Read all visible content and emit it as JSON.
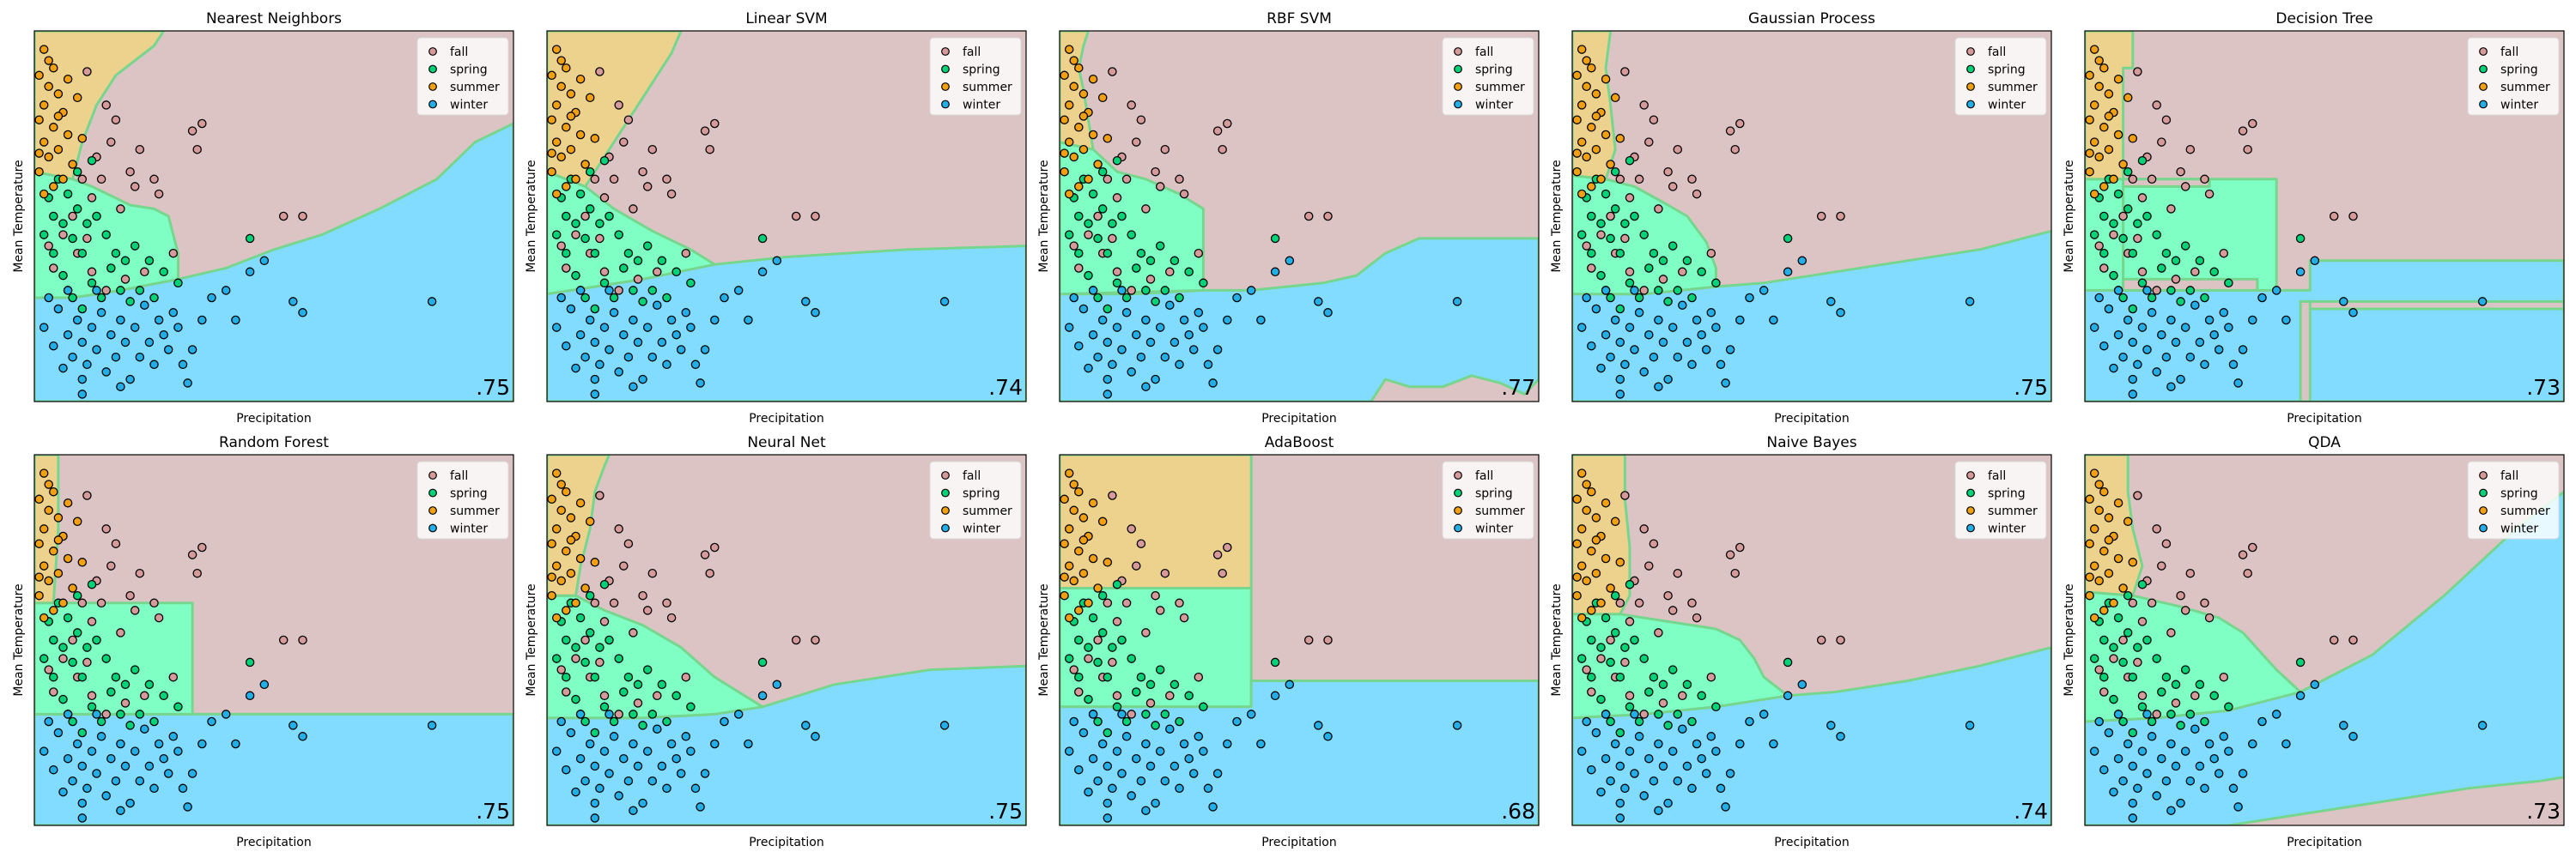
{
  "figure": {
    "xlabel": "Precipitation",
    "ylabel": "Mean Temperature",
    "legend_position": "top-right",
    "classes": [
      {
        "name": "fall",
        "region_color": "#dcc4c4",
        "point_color": "#d79a9a"
      },
      {
        "name": "spring",
        "region_color": "#80ffc4",
        "point_color": "#00d278"
      },
      {
        "name": "summer",
        "region_color": "#ecd28c",
        "point_color": "#f2a010"
      },
      {
        "name": "winter",
        "region_color": "#82dcff",
        "point_color": "#22aee6"
      }
    ],
    "boundary_color": "#76d68e"
  },
  "chart_data": [
    {
      "type": "scatter",
      "title": "Nearest Neighbors",
      "score": ".75"
    },
    {
      "type": "scatter",
      "title": "Linear SVM",
      "score": ".74"
    },
    {
      "type": "scatter",
      "title": "RBF SVM",
      "score": ".77"
    },
    {
      "type": "scatter",
      "title": "Gaussian Process",
      "score": ".75"
    },
    {
      "type": "scatter",
      "title": "Decision Tree",
      "score": ".73"
    },
    {
      "type": "scatter",
      "title": "Random Forest",
      "score": ".75"
    },
    {
      "type": "scatter",
      "title": "Neural Net",
      "score": ".75"
    },
    {
      "type": "scatter",
      "title": "AdaBoost",
      "score": ".68"
    },
    {
      "type": "scatter",
      "title": "Naive Bayes",
      "score": ".74"
    },
    {
      "type": "scatter",
      "title": "QDA",
      "score": ".73"
    }
  ],
  "points": {
    "summer": [
      [
        0.02,
        0.95
      ],
      [
        0.04,
        0.9
      ],
      [
        0.01,
        0.88
      ],
      [
        0.03,
        0.85
      ],
      [
        0.05,
        0.83
      ],
      [
        0.02,
        0.8
      ],
      [
        0.06,
        0.78
      ],
      [
        0.01,
        0.76
      ],
      [
        0.04,
        0.74
      ],
      [
        0.07,
        0.72
      ],
      [
        0.02,
        0.7
      ],
      [
        0.05,
        0.68
      ],
      [
        0.03,
        0.66
      ],
      [
        0.08,
        0.64
      ],
      [
        0.01,
        0.62
      ],
      [
        0.06,
        0.6
      ],
      [
        0.04,
        0.58
      ],
      [
        0.02,
        0.56
      ],
      [
        0.09,
        0.82
      ],
      [
        0.03,
        0.92
      ],
      [
        0.07,
        0.87
      ],
      [
        0.05,
        0.77
      ],
      [
        0.1,
        0.71
      ],
      [
        0.01,
        0.67
      ]
    ],
    "fall": [
      [
        0.11,
        0.89
      ],
      [
        0.15,
        0.8
      ],
      [
        0.17,
        0.76
      ],
      [
        0.22,
        0.68
      ],
      [
        0.2,
        0.62
      ],
      [
        0.25,
        0.6
      ],
      [
        0.33,
        0.73
      ],
      [
        0.34,
        0.68
      ],
      [
        0.35,
        0.75
      ],
      [
        0.52,
        0.5
      ],
      [
        0.56,
        0.5
      ],
      [
        0.14,
        0.6
      ],
      [
        0.12,
        0.55
      ],
      [
        0.18,
        0.52
      ],
      [
        0.08,
        0.5
      ],
      [
        0.13,
        0.66
      ],
      [
        0.16,
        0.7
      ],
      [
        0.21,
        0.58
      ],
      [
        0.26,
        0.56
      ],
      [
        0.1,
        0.6
      ],
      [
        0.06,
        0.45
      ],
      [
        0.09,
        0.4
      ],
      [
        0.12,
        0.35
      ],
      [
        0.15,
        0.3
      ],
      [
        0.19,
        0.33
      ],
      [
        0.07,
        0.3
      ],
      [
        0.04,
        0.36
      ],
      [
        0.03,
        0.42
      ],
      [
        0.11,
        0.44
      ],
      [
        0.23,
        0.35
      ],
      [
        0.29,
        0.4
      ]
    ],
    "spring": [
      [
        0.03,
        0.55
      ],
      [
        0.05,
        0.6
      ],
      [
        0.07,
        0.56
      ],
      [
        0.09,
        0.52
      ],
      [
        0.11,
        0.48
      ],
      [
        0.13,
        0.5
      ],
      [
        0.15,
        0.45
      ],
      [
        0.17,
        0.4
      ],
      [
        0.19,
        0.38
      ],
      [
        0.21,
        0.42
      ],
      [
        0.24,
        0.38
      ],
      [
        0.27,
        0.35
      ],
      [
        0.06,
        0.48
      ],
      [
        0.08,
        0.44
      ],
      [
        0.1,
        0.4
      ],
      [
        0.12,
        0.32
      ],
      [
        0.14,
        0.28
      ],
      [
        0.16,
        0.36
      ],
      [
        0.18,
        0.3
      ],
      [
        0.2,
        0.27
      ],
      [
        0.02,
        0.45
      ],
      [
        0.04,
        0.4
      ],
      [
        0.06,
        0.34
      ],
      [
        0.08,
        0.28
      ],
      [
        0.1,
        0.25
      ],
      [
        0.22,
        0.3
      ],
      [
        0.25,
        0.28
      ],
      [
        0.3,
        0.32
      ],
      [
        0.45,
        0.44
      ],
      [
        0.04,
        0.5
      ],
      [
        0.09,
        0.62
      ],
      [
        0.12,
        0.65
      ]
    ],
    "winter": [
      [
        0.02,
        0.2
      ],
      [
        0.04,
        0.15
      ],
      [
        0.05,
        0.25
      ],
      [
        0.07,
        0.18
      ],
      [
        0.08,
        0.12
      ],
      [
        0.09,
        0.22
      ],
      [
        0.1,
        0.16
      ],
      [
        0.11,
        0.1
      ],
      [
        0.12,
        0.2
      ],
      [
        0.13,
        0.14
      ],
      [
        0.14,
        0.24
      ],
      [
        0.15,
        0.08
      ],
      [
        0.16,
        0.18
      ],
      [
        0.17,
        0.12
      ],
      [
        0.18,
        0.22
      ],
      [
        0.19,
        0.16
      ],
      [
        0.2,
        0.06
      ],
      [
        0.21,
        0.2
      ],
      [
        0.22,
        0.12
      ],
      [
        0.23,
        0.26
      ],
      [
        0.24,
        0.16
      ],
      [
        0.25,
        0.1
      ],
      [
        0.26,
        0.22
      ],
      [
        0.27,
        0.18
      ],
      [
        0.28,
        0.14
      ],
      [
        0.29,
        0.24
      ],
      [
        0.3,
        0.2
      ],
      [
        0.31,
        0.1
      ],
      [
        0.33,
        0.14
      ],
      [
        0.35,
        0.22
      ],
      [
        0.37,
        0.28
      ],
      [
        0.4,
        0.3
      ],
      [
        0.42,
        0.22
      ],
      [
        0.45,
        0.35
      ],
      [
        0.48,
        0.38
      ],
      [
        0.54,
        0.27
      ],
      [
        0.56,
        0.24
      ],
      [
        0.83,
        0.27
      ],
      [
        0.06,
        0.09
      ],
      [
        0.1,
        0.06
      ],
      [
        0.03,
        0.28
      ],
      [
        0.1,
        0.02
      ],
      [
        0.13,
        0.3
      ],
      [
        0.07,
        0.3
      ],
      [
        0.18,
        0.04
      ],
      [
        0.32,
        0.05
      ]
    ]
  }
}
